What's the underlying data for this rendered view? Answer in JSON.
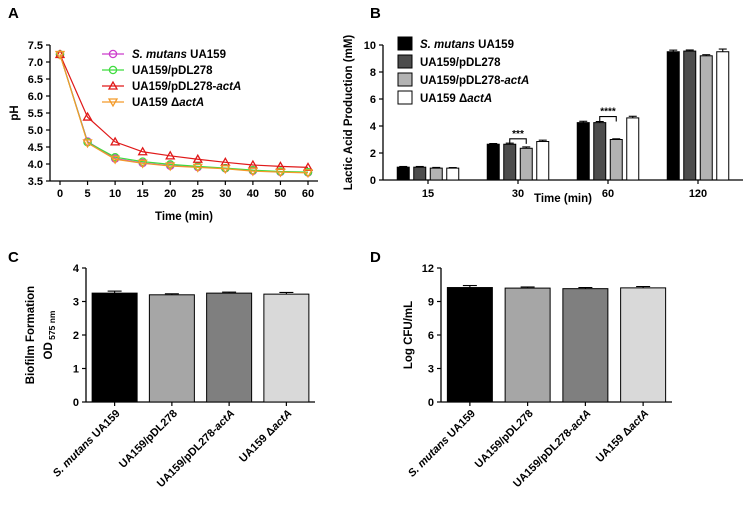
{
  "panels": [
    {
      "id": "A",
      "letter": "A"
    },
    {
      "id": "B",
      "letter": "B"
    },
    {
      "id": "C",
      "letter": "C"
    },
    {
      "id": "D",
      "letter": "D"
    }
  ],
  "legend": [
    {
      "pre": "S. mutans",
      "post": " UA159",
      "italic": "pre"
    },
    {
      "pre": "UA159/pDL278",
      "post": "",
      "italic": "none"
    },
    {
      "pre": "UA159/pDL278-",
      "post": "actA",
      "italic": "post"
    },
    {
      "pre": "UA159 Δ",
      "post": "actA",
      "italic": "post"
    }
  ],
  "chart_data": [
    {
      "panel": "A",
      "type": "line",
      "xlabel": "Time (min)",
      "ylabel": "pH",
      "x": [
        0,
        5,
        10,
        15,
        20,
        25,
        30,
        40,
        50,
        60
      ],
      "ylim": [
        3.5,
        7.5
      ],
      "yticks": [
        3.5,
        4.0,
        4.5,
        5.0,
        5.5,
        6.0,
        6.5,
        7.0,
        7.5
      ],
      "series": [
        {
          "name": "S. mutans UA159",
          "color": "#cc3dcc",
          "marker": "circle",
          "values": [
            7.22,
            4.66,
            4.16,
            4.03,
            3.95,
            3.91,
            3.87,
            3.8,
            3.77,
            3.75
          ]
        },
        {
          "name": "UA159/pDL278",
          "color": "#3fdc3f",
          "marker": "circle",
          "values": [
            7.22,
            4.64,
            4.2,
            4.07,
            3.99,
            3.93,
            3.88,
            3.82,
            3.78,
            3.76
          ]
        },
        {
          "name": "UA159/pDL278-actA",
          "color": "#e01919",
          "marker": "triangle-up",
          "values": [
            7.22,
            5.38,
            4.65,
            4.36,
            4.24,
            4.14,
            4.05,
            3.97,
            3.93,
            3.9
          ]
        },
        {
          "name": "UA159 ΔactA",
          "color": "#f39a2a",
          "marker": "triangle-down",
          "values": [
            7.22,
            4.62,
            4.14,
            4.02,
            3.94,
            3.9,
            3.86,
            3.79,
            3.76,
            3.74
          ]
        }
      ]
    },
    {
      "panel": "B",
      "type": "bar",
      "xlabel": "Time (min)",
      "ylabel": "Lactic Acid Production (mM)",
      "categories": [
        "15",
        "30",
        "60",
        "120"
      ],
      "ylim": [
        0,
        10
      ],
      "yticks": [
        0,
        2,
        4,
        6,
        8,
        10
      ],
      "series": [
        {
          "name": "S. mutans UA159",
          "color": "#000000",
          "values": [
            0.95,
            2.65,
            4.25,
            9.5
          ],
          "errors": [
            0.05,
            0.05,
            0.1,
            0.12
          ]
        },
        {
          "name": "UA159/pDL278",
          "color": "#4d4d4d",
          "values": [
            0.95,
            2.65,
            4.25,
            9.55
          ],
          "errors": [
            0.05,
            0.08,
            0.08,
            0.08
          ]
        },
        {
          "name": "UA159/pDL278-actA",
          "color": "#b3b3b3",
          "values": [
            0.88,
            2.35,
            3.0,
            9.2
          ],
          "errors": [
            0.05,
            0.1,
            0.05,
            0.08
          ]
        },
        {
          "name": "UA159 ΔactA",
          "color": "#ffffff",
          "values": [
            0.88,
            2.85,
            4.6,
            9.5
          ],
          "errors": [
            0.04,
            0.1,
            0.12,
            0.2
          ]
        }
      ],
      "annotations": [
        {
          "category": "30",
          "from": 1,
          "to": 2,
          "label": "***",
          "y": 3.05
        },
        {
          "category": "60",
          "from": 1,
          "to": 2,
          "label": "****",
          "y": 4.7
        }
      ]
    },
    {
      "panel": "C",
      "type": "bar",
      "xlabel": "",
      "ylabel": "Biofilm Formation",
      "ylabel_sub_main": "OD",
      "ylabel_sub_sub": "575 nm",
      "categories": [
        "S. mutans UA159",
        "UA159/pDL278",
        "UA159/pDL278-actA",
        "UA159 ΔactA"
      ],
      "colors": [
        "#000000",
        "#a6a6a6",
        "#7f7f7f",
        "#d9d9d9"
      ],
      "values": [
        3.25,
        3.2,
        3.25,
        3.22
      ],
      "errors": [
        0.06,
        0.03,
        0.03,
        0.05
      ],
      "ylim": [
        0,
        4
      ],
      "yticks": [
        0,
        1,
        2,
        3,
        4
      ]
    },
    {
      "panel": "D",
      "type": "bar",
      "xlabel": "",
      "ylabel": "Log CFU/mL",
      "categories": [
        "S. mutans UA159",
        "UA159/pDL278",
        "UA159/pDL278-actA",
        "UA159 ΔactA"
      ],
      "colors": [
        "#000000",
        "#a6a6a6",
        "#7f7f7f",
        "#d9d9d9"
      ],
      "values": [
        10.25,
        10.2,
        10.15,
        10.22
      ],
      "errors": [
        0.18,
        0.1,
        0.1,
        0.12
      ],
      "ylim": [
        0,
        12
      ],
      "yticks": [
        0,
        3,
        6,
        9,
        12
      ]
    }
  ]
}
